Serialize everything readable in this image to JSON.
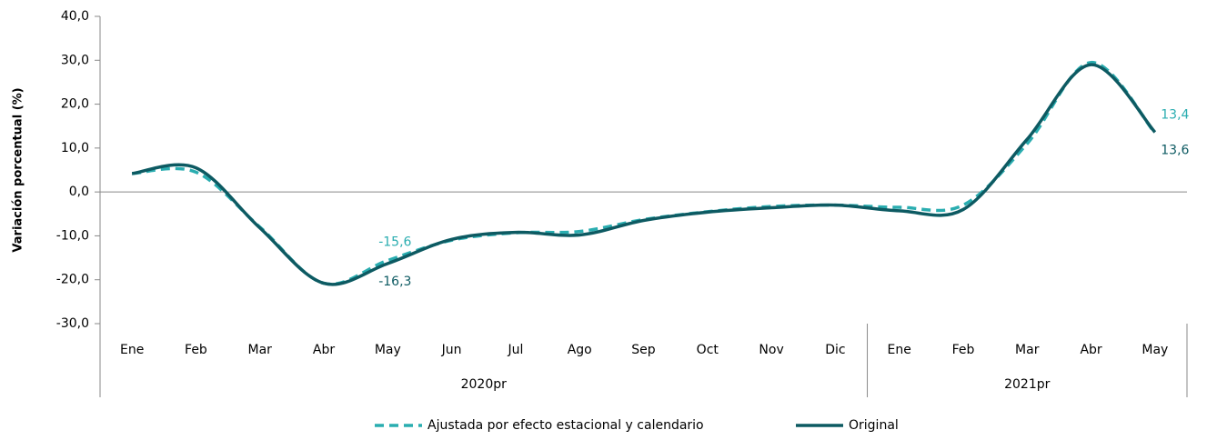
{
  "chart_data": {
    "type": "line",
    "y_label": "Variación porcentual (%)",
    "categories": [
      "Ene",
      "Feb",
      "Mar",
      "Abr",
      "May",
      "Jun",
      "Jul",
      "Ago",
      "Sep",
      "Oct",
      "Nov",
      "Dic",
      "Ene",
      "Feb",
      "Mar",
      "Abr",
      "May"
    ],
    "groups": [
      {
        "label": "2020pr",
        "count": 12
      },
      {
        "label": "2021pr",
        "count": 5
      }
    ],
    "series": [
      {
        "name": "Ajustada por efecto estacional y calendario",
        "color": "#2aadb0",
        "dashed": true,
        "values": [
          4.2,
          4.5,
          -8,
          -20.8,
          -15.6,
          -11,
          -9.3,
          -9,
          -6.3,
          -4.5,
          -3.3,
          -3,
          -3.5,
          -3,
          11,
          29.5,
          13.4
        ],
        "value_labels": [
          null,
          null,
          null,
          null,
          "-15,6",
          null,
          null,
          null,
          null,
          null,
          null,
          null,
          null,
          null,
          null,
          null,
          "13,4"
        ]
      },
      {
        "name": "Original",
        "color": "#0d5a62",
        "dashed": false,
        "values": [
          4.2,
          5.5,
          -8.2,
          -20.8,
          -16.3,
          -10.8,
          -9.2,
          -9.8,
          -6.5,
          -4.6,
          -3.6,
          -3,
          -4.3,
          -4,
          12,
          29,
          13.6
        ],
        "value_labels": [
          null,
          null,
          null,
          null,
          "-16,3",
          null,
          null,
          null,
          null,
          null,
          null,
          null,
          null,
          null,
          null,
          null,
          "13,6"
        ]
      }
    ],
    "ylim": [
      -30,
      40
    ],
    "yticks": [
      {
        "value": -30,
        "label": "-30,0"
      },
      {
        "value": -20,
        "label": "-20,0"
      },
      {
        "value": -10,
        "label": "-10,0"
      },
      {
        "value": 0,
        "label": "0,0"
      },
      {
        "value": 10,
        "label": "10,0"
      },
      {
        "value": 20,
        "label": "20,0"
      },
      {
        "value": 30,
        "label": "30,0"
      },
      {
        "value": 40,
        "label": "40,0"
      }
    ],
    "legend": "bottom"
  }
}
